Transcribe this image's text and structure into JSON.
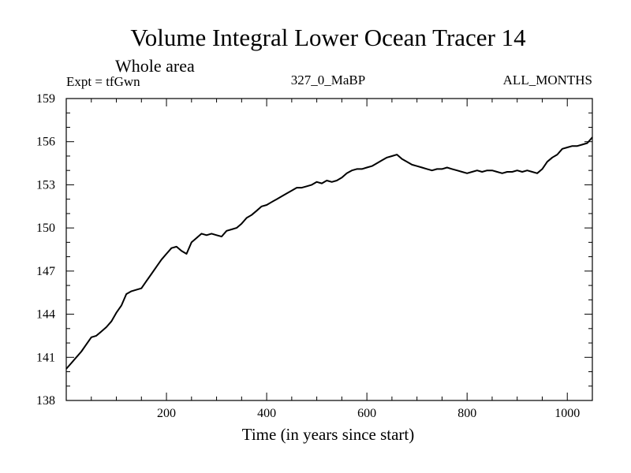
{
  "chart_data": {
    "type": "line",
    "title": "Volume Integral Lower Ocean Tracer 14",
    "subtitle": "Whole area",
    "experiment_label": "Expt = tfGwn",
    "run_label": "327_0_MaBP",
    "months_label": "ALL_MONTHS",
    "xlabel": "Time (in years since start)",
    "ylabel": "",
    "xlim": [
      0,
      1050
    ],
    "ylim": [
      138,
      159
    ],
    "x_major_ticks": [
      200,
      400,
      600,
      800,
      1000
    ],
    "y_major_ticks": [
      138,
      141,
      144,
      147,
      150,
      153,
      156,
      159
    ],
    "grid": false,
    "series": [
      {
        "name": "Tracer 14",
        "x": [
          0,
          10,
          20,
          30,
          40,
          50,
          60,
          70,
          80,
          90,
          100,
          110,
          120,
          130,
          140,
          150,
          160,
          170,
          180,
          190,
          200,
          210,
          220,
          230,
          240,
          250,
          260,
          270,
          280,
          290,
          300,
          310,
          320,
          330,
          340,
          350,
          360,
          370,
          380,
          390,
          400,
          410,
          420,
          430,
          440,
          450,
          460,
          470,
          480,
          490,
          500,
          510,
          520,
          530,
          540,
          550,
          560,
          570,
          580,
          590,
          600,
          610,
          620,
          630,
          640,
          650,
          660,
          670,
          680,
          690,
          700,
          710,
          720,
          730,
          740,
          750,
          760,
          770,
          780,
          790,
          800,
          810,
          820,
          830,
          840,
          850,
          860,
          870,
          880,
          890,
          900,
          910,
          920,
          930,
          940,
          950,
          960,
          970,
          980,
          990,
          1000,
          1010,
          1020,
          1030,
          1040,
          1050
        ],
        "values": [
          140.2,
          140.6,
          141.0,
          141.4,
          141.9,
          142.4,
          142.5,
          142.8,
          143.1,
          143.5,
          144.1,
          144.6,
          145.4,
          145.6,
          145.7,
          145.8,
          146.3,
          146.8,
          147.3,
          147.8,
          148.2,
          148.6,
          148.7,
          148.4,
          148.2,
          149.0,
          149.3,
          149.6,
          149.5,
          149.6,
          149.5,
          149.4,
          149.8,
          149.9,
          150.0,
          150.3,
          150.7,
          150.9,
          151.2,
          151.5,
          151.6,
          151.8,
          152.0,
          152.2,
          152.4,
          152.6,
          152.8,
          152.8,
          152.9,
          153.0,
          153.2,
          153.1,
          153.3,
          153.2,
          153.3,
          153.5,
          153.8,
          154.0,
          154.1,
          154.1,
          154.2,
          154.3,
          154.5,
          154.7,
          154.9,
          155.0,
          155.1,
          154.8,
          154.6,
          154.4,
          154.3,
          154.2,
          154.1,
          154.0,
          154.1,
          154.1,
          154.2,
          154.1,
          154.0,
          153.9,
          153.8,
          153.9,
          154.0,
          153.9,
          154.0,
          154.0,
          153.9,
          153.8,
          153.9,
          153.9,
          154.0,
          153.9,
          154.0,
          153.9,
          153.8,
          154.1,
          154.6,
          154.9,
          155.1,
          155.5,
          155.6,
          155.7,
          155.7,
          155.8,
          155.9,
          156.3
        ]
      }
    ]
  }
}
